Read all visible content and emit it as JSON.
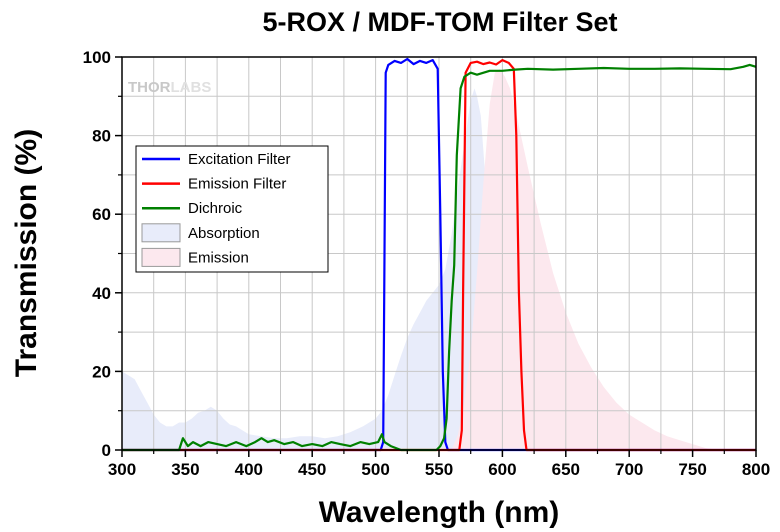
{
  "chart_data": {
    "type": "line",
    "title": "5-ROX / MDF-TOM Filter Set",
    "xlabel": "Wavelength (nm)",
    "ylabel": "Transmission (%)",
    "xlim": [
      300,
      800
    ],
    "ylim": [
      0,
      100
    ],
    "x_ticks": [
      "300",
      "350",
      "400",
      "450",
      "500",
      "550",
      "600",
      "650",
      "700",
      "750",
      "800"
    ],
    "y_ticks": [
      "0",
      "20",
      "40",
      "60",
      "80",
      "100"
    ],
    "grid": true,
    "legend_position": "left",
    "watermark": {
      "part_a": "THOR",
      "part_b": "LABS"
    },
    "series": [
      {
        "name": "Excitation Filter",
        "kind": "line",
        "color": "#0000ff",
        "points": [
          [
            300,
            0
          ],
          [
            504,
            0
          ],
          [
            506,
            2
          ],
          [
            507,
            50
          ],
          [
            508,
            96
          ],
          [
            510,
            98
          ],
          [
            515,
            99
          ],
          [
            520,
            98.5
          ],
          [
            525,
            99.5
          ],
          [
            530,
            98.2
          ],
          [
            535,
            99
          ],
          [
            540,
            98.5
          ],
          [
            545,
            99.2
          ],
          [
            549,
            97
          ],
          [
            551,
            60
          ],
          [
            553,
            20
          ],
          [
            555,
            2
          ],
          [
            557,
            0
          ],
          [
            800,
            0
          ]
        ]
      },
      {
        "name": "Emission Filter",
        "kind": "line",
        "color": "#ff0000",
        "points": [
          [
            300,
            0
          ],
          [
            566,
            0
          ],
          [
            568,
            5
          ],
          [
            569,
            40
          ],
          [
            571,
            96
          ],
          [
            575,
            98.5
          ],
          [
            580,
            98.8
          ],
          [
            585,
            98.2
          ],
          [
            590,
            98.6
          ],
          [
            595,
            98.1
          ],
          [
            600,
            99.2
          ],
          [
            605,
            98.5
          ],
          [
            609,
            97
          ],
          [
            611,
            80
          ],
          [
            613,
            40
          ],
          [
            615,
            20
          ],
          [
            617,
            5
          ],
          [
            619,
            0
          ],
          [
            800,
            0
          ]
        ]
      },
      {
        "name": "Dichroic",
        "kind": "line",
        "color": "#008000",
        "points": [
          [
            300,
            0
          ],
          [
            345,
            0
          ],
          [
            348,
            3
          ],
          [
            352,
            1
          ],
          [
            356,
            2
          ],
          [
            362,
            1
          ],
          [
            368,
            2
          ],
          [
            375,
            1.5
          ],
          [
            382,
            1
          ],
          [
            390,
            2
          ],
          [
            398,
            1
          ],
          [
            405,
            2
          ],
          [
            410,
            3
          ],
          [
            415,
            2
          ],
          [
            420,
            2.5
          ],
          [
            428,
            1.5
          ],
          [
            435,
            2
          ],
          [
            442,
            1
          ],
          [
            450,
            1.5
          ],
          [
            458,
            1
          ],
          [
            465,
            2
          ],
          [
            472,
            1.5
          ],
          [
            480,
            1
          ],
          [
            488,
            2
          ],
          [
            495,
            1.5
          ],
          [
            502,
            2
          ],
          [
            505,
            4
          ],
          [
            507,
            2
          ],
          [
            512,
            1
          ],
          [
            520,
            0
          ],
          [
            540,
            0
          ],
          [
            548,
            0
          ],
          [
            551,
            1
          ],
          [
            554,
            3
          ],
          [
            556,
            8
          ],
          [
            558,
            25
          ],
          [
            560,
            38
          ],
          [
            562,
            47
          ],
          [
            564,
            75
          ],
          [
            567,
            92
          ],
          [
            570,
            95
          ],
          [
            575,
            96
          ],
          [
            580,
            95.5
          ],
          [
            590,
            96.5
          ],
          [
            600,
            96.5
          ],
          [
            610,
            96.8
          ],
          [
            620,
            97
          ],
          [
            640,
            96.8
          ],
          [
            660,
            97
          ],
          [
            680,
            97.2
          ],
          [
            700,
            97
          ],
          [
            720,
            97
          ],
          [
            740,
            97.1
          ],
          [
            760,
            97
          ],
          [
            780,
            96.9
          ],
          [
            790,
            97.5
          ],
          [
            795,
            98
          ],
          [
            800,
            97.5
          ]
        ]
      },
      {
        "name": "Absorption",
        "kind": "area",
        "color": "#e8ecfa",
        "points": [
          [
            300,
            20
          ],
          [
            305,
            19
          ],
          [
            310,
            18
          ],
          [
            315,
            15
          ],
          [
            320,
            12
          ],
          [
            325,
            9
          ],
          [
            330,
            7
          ],
          [
            335,
            6
          ],
          [
            340,
            6
          ],
          [
            345,
            7
          ],
          [
            350,
            7
          ],
          [
            355,
            8
          ],
          [
            360,
            9.5
          ],
          [
            365,
            10
          ],
          [
            370,
            11
          ],
          [
            375,
            10
          ],
          [
            380,
            8
          ],
          [
            385,
            6.5
          ],
          [
            390,
            6
          ],
          [
            395,
            5
          ],
          [
            400,
            4
          ],
          [
            410,
            3.5
          ],
          [
            420,
            3
          ],
          [
            430,
            3
          ],
          [
            440,
            3.5
          ],
          [
            450,
            3.5
          ],
          [
            460,
            3
          ],
          [
            470,
            3.5
          ],
          [
            480,
            4.5
          ],
          [
            490,
            6
          ],
          [
            500,
            8
          ],
          [
            505,
            10
          ],
          [
            510,
            14
          ],
          [
            515,
            19
          ],
          [
            520,
            24
          ],
          [
            525,
            28.5
          ],
          [
            530,
            32
          ],
          [
            535,
            35
          ],
          [
            540,
            38
          ],
          [
            545,
            40
          ],
          [
            550,
            42
          ],
          [
            555,
            46
          ],
          [
            560,
            55
          ],
          [
            565,
            67
          ],
          [
            570,
            78
          ],
          [
            575,
            89
          ],
          [
            578,
            92
          ],
          [
            580,
            90
          ],
          [
            583,
            85
          ],
          [
            586,
            72
          ],
          [
            590,
            55
          ],
          [
            594,
            38
          ],
          [
            597,
            22
          ],
          [
            600,
            12
          ],
          [
            604,
            5
          ],
          [
            608,
            2
          ],
          [
            612,
            0
          ],
          [
            800,
            0
          ]
        ]
      },
      {
        "name": "Emission",
        "kind": "area",
        "color": "#fce8ee",
        "points": [
          [
            300,
            0
          ],
          [
            560,
            0
          ],
          [
            565,
            4
          ],
          [
            570,
            12
          ],
          [
            575,
            25
          ],
          [
            580,
            45
          ],
          [
            585,
            68
          ],
          [
            590,
            88
          ],
          [
            594,
            96
          ],
          [
            598,
            97
          ],
          [
            602,
            95
          ],
          [
            606,
            92
          ],
          [
            612,
            84
          ],
          [
            620,
            72
          ],
          [
            630,
            58
          ],
          [
            640,
            45
          ],
          [
            650,
            35
          ],
          [
            660,
            27
          ],
          [
            670,
            21
          ],
          [
            680,
            16
          ],
          [
            690,
            12
          ],
          [
            700,
            9
          ],
          [
            710,
            7
          ],
          [
            720,
            5
          ],
          [
            730,
            3.5
          ],
          [
            740,
            2.5
          ],
          [
            750,
            1.5
          ],
          [
            760,
            0.5
          ],
          [
            770,
            0
          ],
          [
            800,
            0
          ]
        ]
      }
    ]
  }
}
